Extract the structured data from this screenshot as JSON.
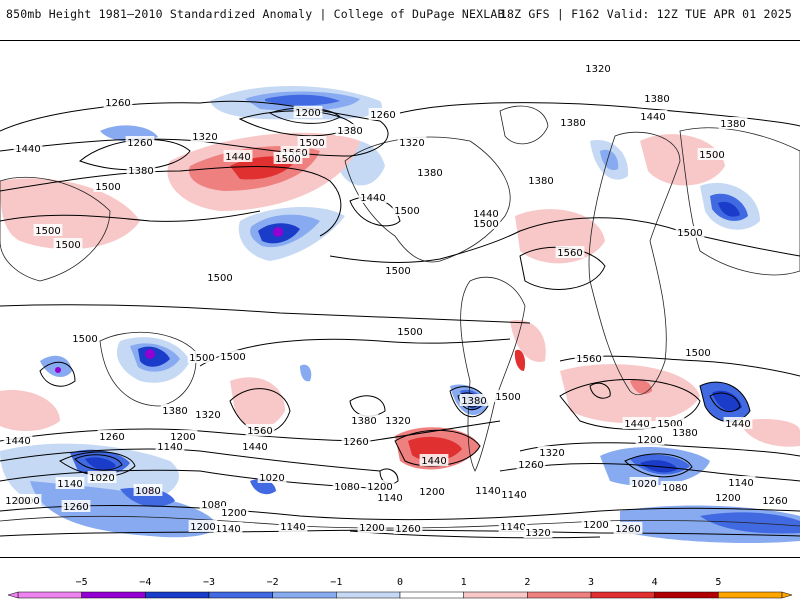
{
  "header": {
    "title": "850mb Height 1981–2010 Standardized Anomaly | College of DuPage NEXLAB",
    "run_info": "18Z GFS | F162 Valid: 12Z TUE APR 01 2025"
  },
  "map": {
    "field": "850mb geopotential height contours with standardized anomaly shading",
    "contour_labels": [
      {
        "text": "1320",
        "id": "c1320-a"
      },
      {
        "text": "1260",
        "id": "c1260-a"
      },
      {
        "text": "1200",
        "id": "c1200-a"
      },
      {
        "text": "1260",
        "id": "c1260-b"
      },
      {
        "text": "1380",
        "id": "c1380-a"
      },
      {
        "text": "1260",
        "id": "c1260-c"
      },
      {
        "text": "1320",
        "id": "c1320-b"
      },
      {
        "text": "1500",
        "id": "c1500-a"
      },
      {
        "text": "1440",
        "id": "c1440-a"
      },
      {
        "text": "1560",
        "id": "c1560-a"
      },
      {
        "text": "1500",
        "id": "c1500-b"
      },
      {
        "text": "1380",
        "id": "c1380-b"
      },
      {
        "text": "1320",
        "id": "c1320-c"
      },
      {
        "text": "1380",
        "id": "c1380-c"
      },
      {
        "text": "1380",
        "id": "c1380-d"
      },
      {
        "text": "1440",
        "id": "c1440-b"
      },
      {
        "text": "1500",
        "id": "c1500-c"
      },
      {
        "text": "1380",
        "id": "c1380-e"
      },
      {
        "text": "1440",
        "id": "c1440-c"
      },
      {
        "text": "1500",
        "id": "c1500-d"
      },
      {
        "text": "1380",
        "id": "c1380-f"
      },
      {
        "text": "1440",
        "id": "c1440-d"
      },
      {
        "text": "1500",
        "id": "c1500-e"
      },
      {
        "text": "1440",
        "id": "c1440-e"
      },
      {
        "text": "1380",
        "id": "c1380-g"
      },
      {
        "text": "1500",
        "id": "c1500-f"
      },
      {
        "text": "1500",
        "id": "c1500-g"
      },
      {
        "text": "1500",
        "id": "c1500-h"
      },
      {
        "text": "1500",
        "id": "c1500-i"
      },
      {
        "text": "1500",
        "id": "c1500-j"
      },
      {
        "text": "1560",
        "id": "c1560-b"
      },
      {
        "text": "1500",
        "id": "c1500-k"
      },
      {
        "text": "1500",
        "id": "c1500-l"
      },
      {
        "text": "1500",
        "id": "c1500-m"
      },
      {
        "text": "1500",
        "id": "c1500-n"
      },
      {
        "text": "1500",
        "id": "c1500-o"
      },
      {
        "text": "1560",
        "id": "c1560-c"
      },
      {
        "text": "1500",
        "id": "c1500-p"
      },
      {
        "text": "1500",
        "id": "c1500-q"
      },
      {
        "text": "1380",
        "id": "c1380-h"
      },
      {
        "text": "1320",
        "id": "c1320-d"
      },
      {
        "text": "1560",
        "id": "c1560-d"
      },
      {
        "text": "1440",
        "id": "c1440-f"
      },
      {
        "text": "1380",
        "id": "c1380-i"
      },
      {
        "text": "1320",
        "id": "c1320-e"
      },
      {
        "text": "1380",
        "id": "c1380-j"
      },
      {
        "text": "1440",
        "id": "c1440-g"
      },
      {
        "text": "1500",
        "id": "c1500-r"
      },
      {
        "text": "1440",
        "id": "c1440-h"
      },
      {
        "text": "1380",
        "id": "c1380-k"
      },
      {
        "text": "1440",
        "id": "c1440-i"
      },
      {
        "text": "1200",
        "id": "c1200-b"
      },
      {
        "text": "1140",
        "id": "c1140-a"
      },
      {
        "text": "1260",
        "id": "c1260-d"
      },
      {
        "text": "1200",
        "id": "c1200-c"
      },
      {
        "text": "1260",
        "id": "c1260-e"
      },
      {
        "text": "1440",
        "id": "c1440-j"
      },
      {
        "text": "1320",
        "id": "c1320-f"
      },
      {
        "text": "1200",
        "id": "c1200-d"
      },
      {
        "text": "1260",
        "id": "c1260-f"
      },
      {
        "text": "1200",
        "id": "c1200-e"
      },
      {
        "text": "1140",
        "id": "c1140-b"
      },
      {
        "text": "1020",
        "id": "c1020-a"
      },
      {
        "text": "1080",
        "id": "c1080-a"
      },
      {
        "text": "1140",
        "id": "c1140-c"
      },
      {
        "text": "1080",
        "id": "c1080-b"
      },
      {
        "text": "1020",
        "id": "c1020-b"
      },
      {
        "text": "1080",
        "id": "c1080-c"
      },
      {
        "text": "1140",
        "id": "c1140-d"
      },
      {
        "text": "1200",
        "id": "c1200-f"
      },
      {
        "text": "1140",
        "id": "c1140-e"
      },
      {
        "text": "1200",
        "id": "c1200-g"
      },
      {
        "text": "1140",
        "id": "c1140-f"
      },
      {
        "text": "1020",
        "id": "c1020-c"
      },
      {
        "text": "1080",
        "id": "c1080-d"
      },
      {
        "text": "1140",
        "id": "c1140-g"
      },
      {
        "text": "1200",
        "id": "c1200-h"
      },
      {
        "text": "1260",
        "id": "c1260-g"
      },
      {
        "text": "1200",
        "id": "c1200-i"
      },
      {
        "text": "1140",
        "id": "c1140-h"
      },
      {
        "text": "1200",
        "id": "c1200-j"
      },
      {
        "text": "1260",
        "id": "c1260-h"
      },
      {
        "text": "1140",
        "id": "c1140-i"
      },
      {
        "text": "1320",
        "id": "c1320-g"
      },
      {
        "text": "1200",
        "id": "c1200-k"
      },
      {
        "text": "1260",
        "id": "c1260-i"
      },
      {
        "text": "1200",
        "id": "c1200-l"
      },
      {
        "text": "1260",
        "id": "c1260-j"
      }
    ]
  },
  "legend": {
    "ticks": [
      "−5",
      "−4",
      "−3",
      "−2",
      "−1",
      "0",
      "1",
      "2",
      "3",
      "4",
      "5"
    ],
    "colors": [
      "#ee82ee",
      "#9400d3",
      "#1a3cc8",
      "#4169e1",
      "#87aaf0",
      "#c5d9f5",
      "#ffffff",
      "#f8c8c8",
      "#ee8080",
      "#e03030",
      "#b00000",
      "#ffa500"
    ]
  }
}
